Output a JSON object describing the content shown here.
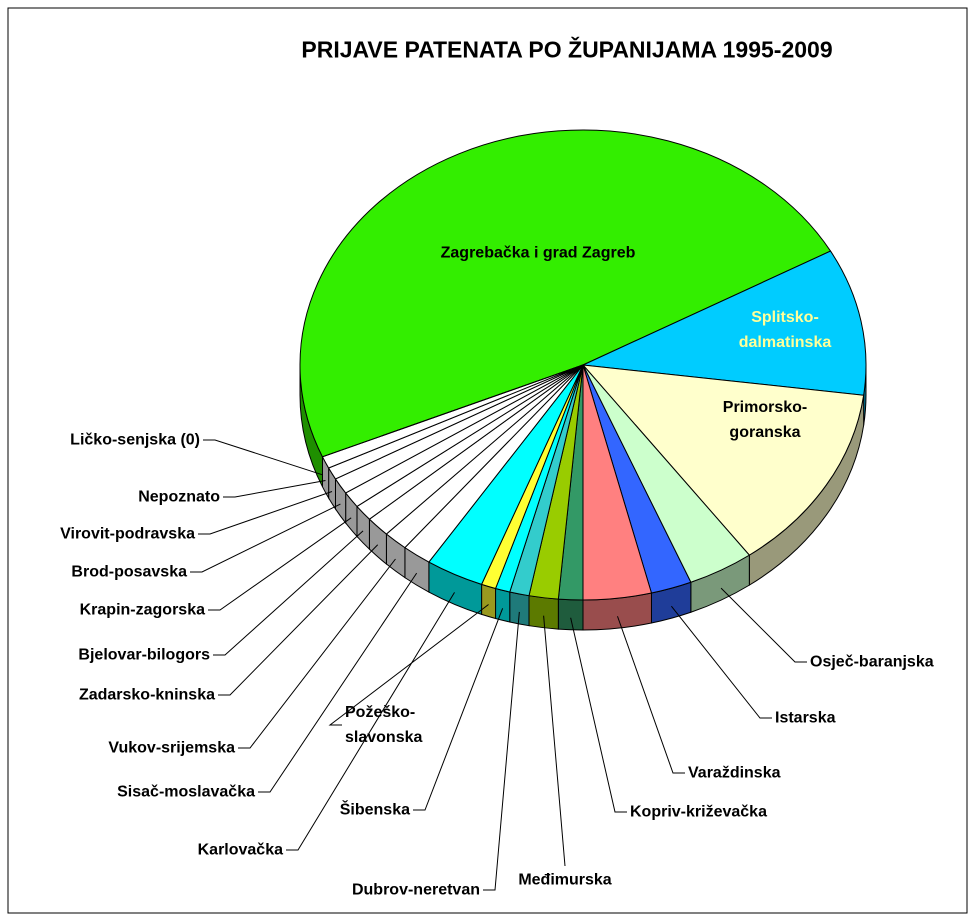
{
  "chart_data": {
    "type": "pie3d",
    "title": "PRIJAVE PATENATA PO ŽUPANIJAMA 1995-2009",
    "categories": [
      "Zagrebačka i grad Zagreb",
      "Splitsko-dalmatinska",
      "Primorsko-goranska",
      "Osječ-baranjska",
      "Istarska",
      "Varaždinska",
      "Kopriv-križevačka",
      "Međimurska",
      "Dubrov-neretvan",
      "Šibenska",
      "Požeško-slavonska",
      "Karlovačka",
      "Sisač-moslavačka",
      "Vukov-srijemska",
      "Zadarsko-kninska",
      "Bjelovar-bilogors",
      "Krapin-zagorska",
      "Brod-posavska",
      "Virovit-podravska",
      "Nepoznato",
      "Ličko-senjska (0)"
    ],
    "values": [
      174,
      36.4,
      46.6,
      13.6,
      8.4,
      14,
      5,
      6,
      4,
      3,
      3,
      12,
      6,
      5,
      5,
      4,
      4,
      4,
      3,
      3,
      0
    ],
    "colors": [
      "#33ee00",
      "#00ccff",
      "#ffffcc",
      "#ccffcc",
      "#3366ff",
      "#ff8080",
      "#339966",
      "#99cc00",
      "#33cccc",
      "#00ffff",
      "#ffff33",
      "#00ffff",
      "#ffffff",
      "#ffffff",
      "#ffffff",
      "#ffffff",
      "#ffffff",
      "#ffffff",
      "#ffffff",
      "#ffffff",
      "#ffffff"
    ]
  }
}
